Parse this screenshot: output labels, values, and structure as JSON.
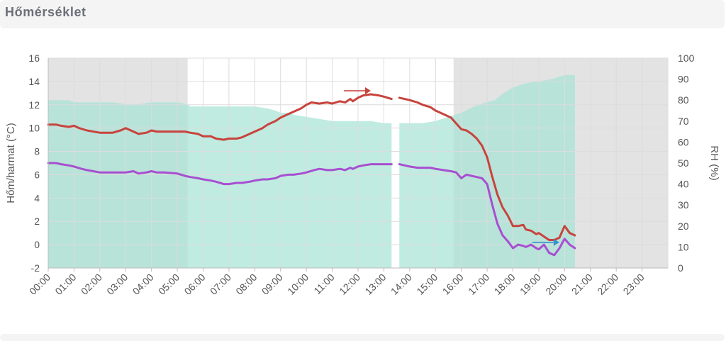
{
  "panel": {
    "title": "Hőmérséklet"
  },
  "colors": {
    "temperature": "#c8433d",
    "dewpoint": "#a74fd0",
    "rh_fill": "#a8e3d6",
    "night_band": "#e3e3e3",
    "grid": "#dcdcdc",
    "arrow_red": "#c8433d",
    "arrow_blue": "#3a8fd0"
  },
  "chart_data": {
    "type": "line",
    "title": "",
    "ylabel": "Hőm/harmat (°C)",
    "y2label": "RH (%)",
    "ylim": [
      -2,
      16
    ],
    "y2lim": [
      0,
      100
    ],
    "yticks": [
      "-2",
      "0",
      "2",
      "4",
      "6",
      "8",
      "10",
      "12",
      "14",
      "16"
    ],
    "y2ticks": [
      "0",
      "10",
      "20",
      "30",
      "40",
      "50",
      "60",
      "70",
      "80",
      "90",
      "100"
    ],
    "xlim": [
      0,
      24
    ],
    "xticks": [
      "00:00",
      "01:00",
      "02:00",
      "03:00",
      "04:00",
      "05:00",
      "06:00",
      "07:00",
      "08:00",
      "09:00",
      "10:00",
      "11:00",
      "12:00",
      "13:00",
      "14:00",
      "15:00",
      "16:00",
      "17:00",
      "18:00",
      "19:00",
      "20:00",
      "21:00",
      "22:00",
      "23:00"
    ],
    "night_bands": [
      [
        0,
        5.4
      ],
      [
        15.7,
        24
      ]
    ],
    "gap": [
      13.3,
      13.6
    ],
    "series": [
      {
        "name": "",
        "kind": "line",
        "axis": "left",
        "x": [
          0,
          0.3,
          0.5,
          0.8,
          1,
          1.2,
          1.5,
          2,
          2.3,
          2.5,
          2.8,
          3,
          3.2,
          3.5,
          3.8,
          4,
          4.2,
          4.5,
          5,
          5.3,
          5.5,
          5.8,
          6,
          6.3,
          6.5,
          6.8,
          7,
          7.3,
          7.5,
          7.8,
          8,
          8.3,
          8.5,
          8.8,
          9,
          9.3,
          9.5,
          9.8,
          10,
          10.2,
          10.5,
          10.8,
          11,
          11.3,
          11.5,
          11.7,
          11.8,
          12,
          12.2,
          12.5,
          12.8,
          13,
          13.3,
          13.6,
          13.8,
          14,
          14.3,
          14.5,
          14.8,
          15,
          15.3,
          15.6,
          15.8,
          16,
          16.2,
          16.4,
          16.6,
          16.8,
          17,
          17.2,
          17.4,
          17.6,
          17.8,
          18,
          18.2,
          18.4,
          18.5,
          18.7,
          18.9,
          19,
          19.2,
          19.4,
          19.6,
          19.8,
          20,
          20.2,
          20.4
        ],
        "values": [
          10.3,
          10.3,
          10.2,
          10.1,
          10.2,
          10,
          9.8,
          9.6,
          9.6,
          9.6,
          9.8,
          10,
          9.8,
          9.5,
          9.6,
          9.8,
          9.7,
          9.7,
          9.7,
          9.7,
          9.6,
          9.5,
          9.3,
          9.3,
          9.1,
          9,
          9.1,
          9.1,
          9.2,
          9.5,
          9.7,
          10,
          10.3,
          10.6,
          10.9,
          11.2,
          11.4,
          11.7,
          12,
          12.2,
          12.1,
          12.2,
          12.1,
          12.3,
          12.2,
          12.5,
          12.3,
          12.6,
          12.8,
          12.9,
          12.8,
          12.7,
          12.5,
          12.6,
          12.5,
          12.4,
          12.2,
          12,
          11.8,
          11.5,
          11.2,
          10.9,
          10.4,
          9.9,
          9.8,
          9.5,
          9.1,
          8.5,
          7.5,
          5.8,
          4.3,
          3.2,
          2.5,
          1.6,
          1.6,
          1.7,
          1.3,
          1.2,
          0.9,
          1,
          0.7,
          0.4,
          0.4,
          0.6,
          1.6,
          1,
          0.8
        ]
      },
      {
        "name": "",
        "kind": "line",
        "axis": "left",
        "x": [
          0,
          0.3,
          0.5,
          0.8,
          1,
          1.3,
          1.5,
          2,
          2.3,
          2.5,
          2.8,
          3,
          3.3,
          3.5,
          3.8,
          4,
          4.2,
          4.5,
          5,
          5.3,
          5.5,
          5.8,
          6,
          6.3,
          6.5,
          6.8,
          7,
          7.3,
          7.5,
          7.8,
          8,
          8.3,
          8.5,
          8.8,
          9,
          9.3,
          9.5,
          9.8,
          10,
          10.3,
          10.5,
          10.8,
          11,
          11.3,
          11.5,
          11.7,
          11.8,
          12,
          12.2,
          12.5,
          12.8,
          13,
          13.3,
          13.6,
          13.8,
          14,
          14.3,
          14.5,
          14.8,
          15,
          15.3,
          15.6,
          15.8,
          16,
          16.2,
          16.4,
          16.6,
          16.8,
          17,
          17.2,
          17.4,
          17.6,
          17.8,
          18,
          18.2,
          18.4,
          18.5,
          18.7,
          18.9,
          19,
          19.2,
          19.4,
          19.6,
          19.8,
          20,
          20.2,
          20.4
        ],
        "values": [
          7,
          7,
          6.9,
          6.8,
          6.7,
          6.5,
          6.4,
          6.2,
          6.2,
          6.2,
          6.2,
          6.2,
          6.3,
          6.1,
          6.2,
          6.3,
          6.2,
          6.2,
          6.1,
          5.9,
          5.8,
          5.7,
          5.6,
          5.5,
          5.4,
          5.2,
          5.2,
          5.3,
          5.3,
          5.4,
          5.5,
          5.6,
          5.6,
          5.7,
          5.9,
          6,
          6,
          6.1,
          6.2,
          6.4,
          6.5,
          6.4,
          6.4,
          6.5,
          6.4,
          6.6,
          6.5,
          6.7,
          6.8,
          6.9,
          6.9,
          6.9,
          6.9,
          6.9,
          6.8,
          6.7,
          6.6,
          6.6,
          6.6,
          6.5,
          6.4,
          6.3,
          6.2,
          5.7,
          6,
          5.9,
          5.8,
          5.7,
          5.2,
          3.4,
          1.8,
          0.8,
          0.3,
          -0.3,
          0,
          -0.1,
          -0.2,
          0,
          -0.3,
          -0.4,
          0,
          -0.7,
          -0.9,
          -0.3,
          0.5,
          0,
          -0.3
        ]
      },
      {
        "name": "",
        "kind": "area",
        "axis": "right",
        "x": [
          0,
          0.8,
          1,
          2,
          2.5,
          3,
          3.2,
          3.5,
          4,
          4.5,
          5,
          5.4,
          5.5,
          6,
          6.5,
          7,
          7.5,
          8,
          8.5,
          8.8,
          9,
          9.3,
          9.5,
          10,
          10.5,
          11,
          11.5,
          12,
          12.5,
          13,
          13.3,
          13.6,
          14,
          14.5,
          15,
          15.5,
          16,
          16.5,
          17,
          17.3,
          17.6,
          18,
          18.5,
          19,
          19.5,
          20,
          20.4
        ],
        "values": [
          80,
          80,
          79,
          79,
          79,
          78,
          78,
          78,
          79,
          79,
          79,
          78,
          77,
          77,
          77,
          77,
          77,
          77,
          76,
          75,
          74,
          74,
          73,
          72,
          71,
          70,
          70,
          70,
          70,
          69,
          69,
          69,
          69,
          69,
          70,
          72,
          74,
          77,
          79,
          80,
          83,
          86,
          88,
          89,
          90,
          92,
          92
        ]
      }
    ],
    "annotations": [
      {
        "kind": "arrow",
        "color": "red",
        "x": 12.0,
        "y": 13.2
      },
      {
        "kind": "arrow",
        "color": "blue",
        "x": 19.3,
        "y": 0.2
      }
    ]
  }
}
